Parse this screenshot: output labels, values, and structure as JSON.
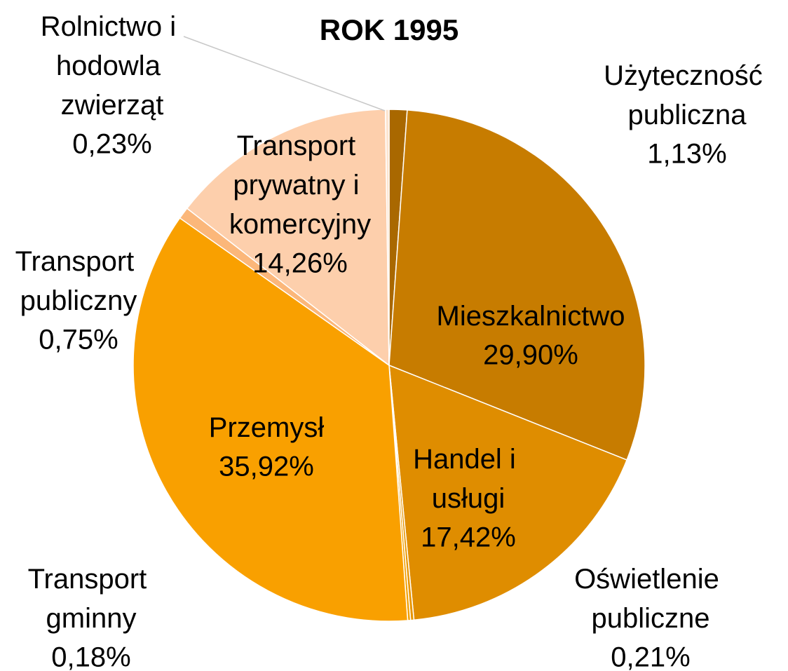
{
  "chart_data": {
    "type": "pie",
    "title": "ROK 1995",
    "categories": [
      "Użyteczność publiczna",
      "Mieszkalnictwo",
      "Handel i usługi",
      "Oświetlenie publiczne",
      "Transport gminny",
      "Przemysł",
      "Transport publiczny",
      "Transport prywatny i komercyjny",
      "Rolnictwo i hodowla zwierząt"
    ],
    "values": [
      1.13,
      29.9,
      17.42,
      0.21,
      0.18,
      35.92,
      0.75,
      14.26,
      0.23
    ],
    "value_labels": [
      "1,13%",
      "29,90%",
      "17,42%",
      "0,21%",
      "0,18%",
      "35,92%",
      "0,75%",
      "14,26%",
      "0,23%"
    ],
    "colors": [
      "#a96800",
      "#c77c00",
      "#df8d00",
      "#e89500",
      "#f2a000",
      "#f9a000",
      "#fbb77a",
      "#fdcfac",
      "#fde5d0"
    ]
  }
}
